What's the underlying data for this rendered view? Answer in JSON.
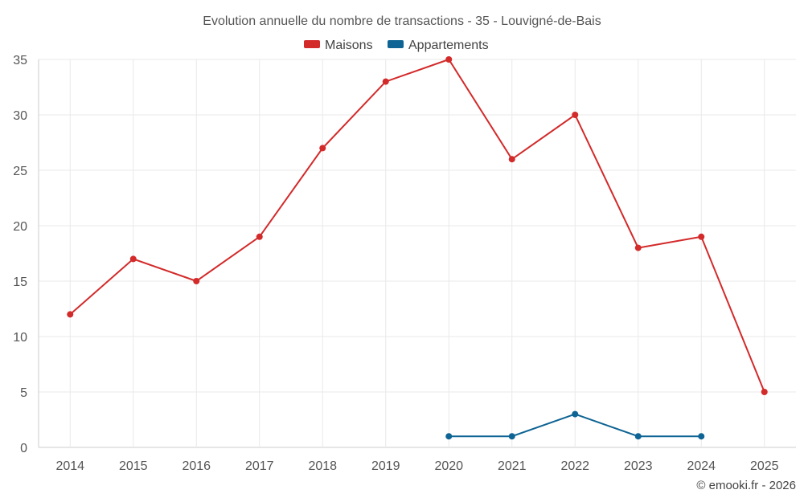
{
  "chart_data": {
    "type": "line",
    "title": "Evolution annuelle du nombre de transactions - 35 - Louvigné-de-Bais",
    "categories": [
      "2014",
      "2015",
      "2016",
      "2017",
      "2018",
      "2019",
      "2020",
      "2021",
      "2022",
      "2023",
      "2024",
      "2025"
    ],
    "ylim": [
      0,
      35
    ],
    "yticks": [
      0,
      5,
      10,
      15,
      20,
      25,
      30,
      35
    ],
    "grid": true,
    "legend_position": "top-center",
    "series": [
      {
        "name": "Maisons",
        "color": "#d32a2a",
        "values": [
          12,
          17,
          15,
          19,
          27,
          33,
          35,
          26,
          30,
          18,
          19,
          5
        ]
      },
      {
        "name": "Appartements",
        "color": "#0e6494",
        "values": [
          null,
          null,
          null,
          null,
          null,
          null,
          1,
          1,
          3,
          1,
          1,
          null
        ]
      }
    ]
  },
  "footer": {
    "credit": "© emooki.fr - 2026"
  }
}
